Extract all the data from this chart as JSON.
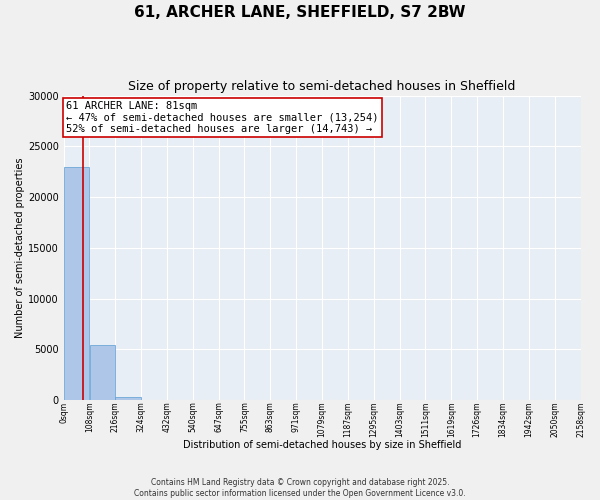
{
  "title": "61, ARCHER LANE, SHEFFIELD, S7 2BW",
  "subtitle": "Size of property relative to semi-detached houses in Sheffield",
  "xlabel": "Distribution of semi-detached houses by size in Sheffield",
  "ylabel": "Number of semi-detached properties",
  "property_size": 81,
  "bin_width": 108,
  "bin_starts": [
    0,
    108,
    216,
    324,
    432,
    540,
    647,
    755,
    863,
    971,
    1079,
    1187,
    1295,
    1403,
    1511,
    1619,
    1726,
    1834,
    1942,
    2050
  ],
  "bin_labels": [
    "0sqm",
    "108sqm",
    "216sqm",
    "324sqm",
    "432sqm",
    "540sqm",
    "647sqm",
    "755sqm",
    "863sqm",
    "971sqm",
    "1079sqm",
    "1187sqm",
    "1295sqm",
    "1403sqm",
    "1511sqm",
    "1619sqm",
    "1726sqm",
    "1834sqm",
    "1942sqm",
    "2050sqm",
    "2158sqm"
  ],
  "bar_heights": [
    23000,
    5400,
    300,
    0,
    0,
    0,
    0,
    0,
    0,
    0,
    0,
    0,
    0,
    0,
    0,
    0,
    0,
    0,
    0,
    0
  ],
  "bar_color": "#aec6e8",
  "bar_edge_color": "#5a9fd4",
  "vline_color": "#cc0000",
  "vline_x": 81,
  "annotation_text": "61 ARCHER LANE: 81sqm\n← 47% of semi-detached houses are smaller (13,254)\n52% of semi-detached houses are larger (14,743) →",
  "annotation_box_color": "#cc0000",
  "ylim": [
    0,
    30000
  ],
  "yticks": [
    0,
    5000,
    10000,
    15000,
    20000,
    25000,
    30000
  ],
  "background_color": "#e8eef5",
  "grid_color": "#ffffff",
  "fig_background": "#f0f0f0",
  "footer_text": "Contains HM Land Registry data © Crown copyright and database right 2025.\nContains public sector information licensed under the Open Government Licence v3.0.",
  "title_fontsize": 11,
  "subtitle_fontsize": 9,
  "annotation_fontsize": 7.5,
  "ylabel_fontsize": 7,
  "xlabel_fontsize": 7
}
